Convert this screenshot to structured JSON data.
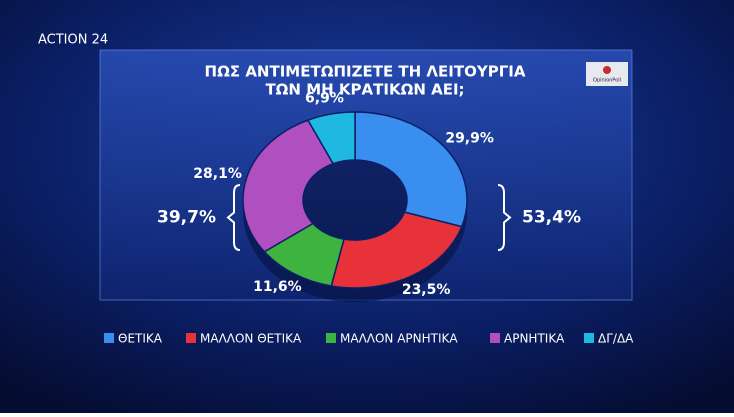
{
  "chart_data": {
    "type": "donut",
    "channel": "ACTION 24",
    "source": "OpinionPoll",
    "title": [
      "ΠΩΣ ΑΝΤΙΜΕΤΩΠΙΖΕΤΕ ΤΗ ΛΕΙΤΟΥΡΓΙΑ",
      "ΤΩΝ ΜΗ ΚΡΑΤΙΚΩΝ ΑΕΙ;"
    ],
    "categories": [
      "ΘΕΤΙΚΑ",
      "ΜΑΛΛΟΝ ΘΕΤΙΚΑ",
      "ΜΑΛΛΟΝ ΑΡΝΗΤΙΚΑ",
      "ΑΡΝΗΤΙΚΑ",
      "ΔΓ/ΔΑ"
    ],
    "values": [
      29.9,
      23.5,
      11.6,
      28.1,
      6.9
    ],
    "value_labels": [
      "29,9%",
      "23,5%",
      "11,6%",
      "28,1%",
      "6,9%"
    ],
    "colors": [
      "#3a8ef0",
      "#e8323a",
      "#3fb33f",
      "#b04fc0",
      "#1fb8e0"
    ],
    "groups": [
      {
        "value": 53.4,
        "label": "53,4%"
      },
      {
        "value": 39.7,
        "label": "39,7%"
      }
    ]
  }
}
